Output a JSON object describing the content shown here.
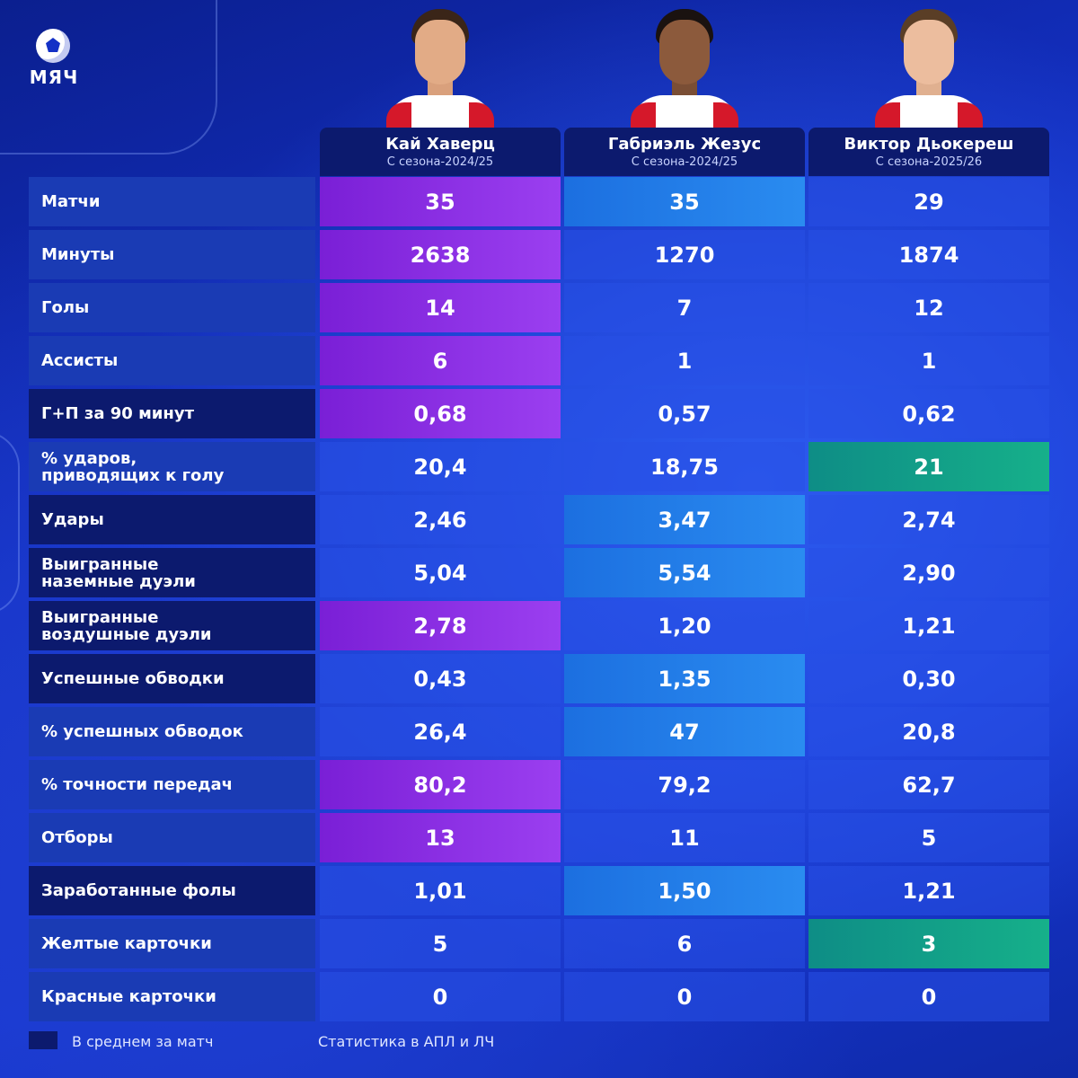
{
  "logo": {
    "text": "МЯЧ"
  },
  "players": [
    {
      "name": "Кай Хаверц",
      "season": "С сезона-2024/25"
    },
    {
      "name": "Габриэль Жезус",
      "season": "С сезона-2024/25"
    },
    {
      "name": "Виктор Дьокереш",
      "season": "С сезона-2025/26"
    }
  ],
  "rows": [
    {
      "label": "Матчи",
      "values": [
        "35",
        "35",
        "29"
      ]
    },
    {
      "label": "Минуты",
      "values": [
        "2638",
        "1270",
        "1874"
      ]
    },
    {
      "label": "Голы",
      "values": [
        "14",
        "7",
        "12"
      ]
    },
    {
      "label": "Ассисты",
      "values": [
        "6",
        "1",
        "1"
      ]
    },
    {
      "label": "Г+П за 90 минут",
      "values": [
        "0,68",
        "0,57",
        "0,62"
      ]
    },
    {
      "label": "% ударов,\nприводящих к голу",
      "values": [
        "20,4",
        "18,75",
        "21"
      ]
    },
    {
      "label": "Удары",
      "values": [
        "2,46",
        "3,47",
        "2,74"
      ]
    },
    {
      "label": "Выигранные\nназемные дуэли",
      "values": [
        "5,04",
        "5,54",
        "2,90"
      ]
    },
    {
      "label": "Выигранные\nвоздушные дуэли",
      "values": [
        "2,78",
        "1,20",
        "1,21"
      ]
    },
    {
      "label": "Успешные обводки",
      "values": [
        "0,43",
        "1,35",
        "0,30"
      ]
    },
    {
      "label": "% успешных обводок",
      "values": [
        "26,4",
        "47",
        "20,8"
      ]
    },
    {
      "label": "% точности передач",
      "values": [
        "80,2",
        "79,2",
        "62,7"
      ]
    },
    {
      "label": "Отборы",
      "values": [
        "13",
        "11",
        "5"
      ]
    },
    {
      "label": "Заработанные фолы",
      "values": [
        "1,01",
        "1,50",
        "1,21"
      ]
    },
    {
      "label": "Желтые карточки",
      "values": [
        "5",
        "6",
        "3"
      ]
    },
    {
      "label": "Красные карточки",
      "values": [
        "0",
        "0",
        "0"
      ]
    }
  ],
  "legend": {
    "text": "В среднем за матч"
  },
  "source": {
    "text": "Статистика в АПЛ и ЛЧ"
  },
  "colors": {
    "background": "#1431c6",
    "per_match_label": "#0c1a6e",
    "best_haverts": "#8a2be2",
    "best_jesus": "#2a8cf0",
    "best_gyokeres": "#16b08a"
  }
}
